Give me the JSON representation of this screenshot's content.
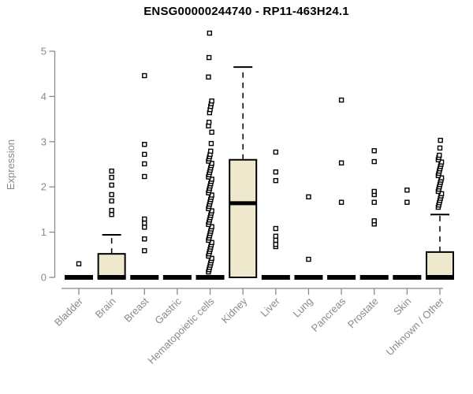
{
  "chart_data": {
    "type": "boxplot",
    "title": "ENSG00000244740 - RP11-463H24.1",
    "ylabel": "Expression",
    "xlabel": "",
    "ylim": [
      0,
      5.5
    ],
    "yticks": [
      0,
      1,
      2,
      3,
      4,
      5
    ],
    "grid": false,
    "legend": "none",
    "box_fill": "#EEE8CD",
    "box_stroke": "#000000",
    "axis_color": "#8a8a8a",
    "title_color": "#000000",
    "categories": [
      "Bladder",
      "Brain",
      "Breast",
      "Gastric",
      "Hematopoietic cells",
      "Kidney",
      "Liver",
      "Lung",
      "Pancreas",
      "Prostate",
      "Skin",
      "Unknown / Other"
    ],
    "series": [
      {
        "category": "Bladder",
        "q1": 0,
        "median": 0,
        "q3": 0,
        "whisker_low": 0,
        "whisker_high": 0,
        "outliers": [
          0.3
        ]
      },
      {
        "category": "Brain",
        "q1": 0,
        "median": 0,
        "q3": 0.52,
        "whisker_low": 0,
        "whisker_high": 0.94,
        "outliers": [
          1.39,
          1.48,
          1.69,
          1.83,
          2.04,
          2.21,
          2.35
        ]
      },
      {
        "category": "Breast",
        "q1": 0,
        "median": 0,
        "q3": 0,
        "whisker_low": 0,
        "whisker_high": 0,
        "outliers": [
          0.59,
          0.85,
          1.11,
          1.2,
          1.29,
          2.23,
          2.51,
          2.72,
          2.94,
          4.46
        ]
      },
      {
        "category": "Gastric",
        "q1": 0,
        "median": 0,
        "q3": 0,
        "whisker_low": 0,
        "whisker_high": 0,
        "outliers": []
      },
      {
        "category": "Hematopoietic cells",
        "q1": 0,
        "median": 0,
        "q3": 0,
        "whisker_low": 0,
        "whisker_high": 0,
        "outliers": [
          0.12,
          0.17,
          0.22,
          0.27,
          0.32,
          0.37,
          0.42,
          0.47,
          0.52,
          0.57,
          0.62,
          0.67,
          0.72,
          0.77,
          0.82,
          0.87,
          0.92,
          0.97,
          1.02,
          1.07,
          1.12,
          1.17,
          1.22,
          1.27,
          1.32,
          1.37,
          1.42,
          1.47,
          1.52,
          1.57,
          1.62,
          1.67,
          1.72,
          1.77,
          1.82,
          1.87,
          1.92,
          1.97,
          2.02,
          2.07,
          2.12,
          2.17,
          2.22,
          2.27,
          2.32,
          2.37,
          2.42,
          2.47,
          2.52,
          2.57,
          2.62,
          2.67,
          2.72,
          2.79,
          2.96,
          3.21,
          3.35,
          3.43,
          3.64,
          3.71,
          3.78,
          3.84,
          3.9,
          4.43,
          4.86,
          5.4
        ]
      },
      {
        "category": "Kidney",
        "q1": 0,
        "median": 1.64,
        "q3": 2.6,
        "whisker_low": 0,
        "whisker_high": 4.65,
        "outliers": []
      },
      {
        "category": "Liver",
        "q1": 0,
        "median": 0,
        "q3": 0,
        "whisker_low": 0,
        "whisker_high": 0,
        "outliers": [
          0.68,
          0.73,
          0.82,
          0.91,
          1.08,
          2.14,
          2.33,
          2.77
        ]
      },
      {
        "category": "Lung",
        "q1": 0,
        "median": 0,
        "q3": 0,
        "whisker_low": 0,
        "whisker_high": 0,
        "outliers": [
          0.4,
          1.78
        ]
      },
      {
        "category": "Pancreas",
        "q1": 0,
        "median": 0,
        "q3": 0,
        "whisker_low": 0,
        "whisker_high": 0,
        "outliers": [
          1.66,
          2.53,
          3.92
        ]
      },
      {
        "category": "Prostate",
        "q1": 0,
        "median": 0,
        "q3": 0,
        "whisker_low": 0,
        "whisker_high": 0,
        "outliers": [
          1.18,
          1.25,
          1.66,
          1.83,
          1.9,
          2.56,
          2.8
        ]
      },
      {
        "category": "Skin",
        "q1": 0,
        "median": 0,
        "q3": 0,
        "whisker_low": 0,
        "whisker_high": 0,
        "outliers": [
          1.66,
          1.93
        ]
      },
      {
        "category": "Unknown / Other",
        "q1": 0,
        "median": 0,
        "q3": 0.56,
        "whisker_low": 0,
        "whisker_high": 1.39,
        "outliers": [
          1.55,
          1.6,
          1.65,
          1.7,
          1.75,
          1.8,
          1.85,
          1.9,
          1.95,
          2.0,
          2.05,
          2.1,
          2.15,
          2.2,
          2.25,
          2.3,
          2.35,
          2.4,
          2.45,
          2.5,
          2.55,
          2.6,
          2.65,
          2.7,
          2.86,
          3.03
        ]
      }
    ]
  }
}
